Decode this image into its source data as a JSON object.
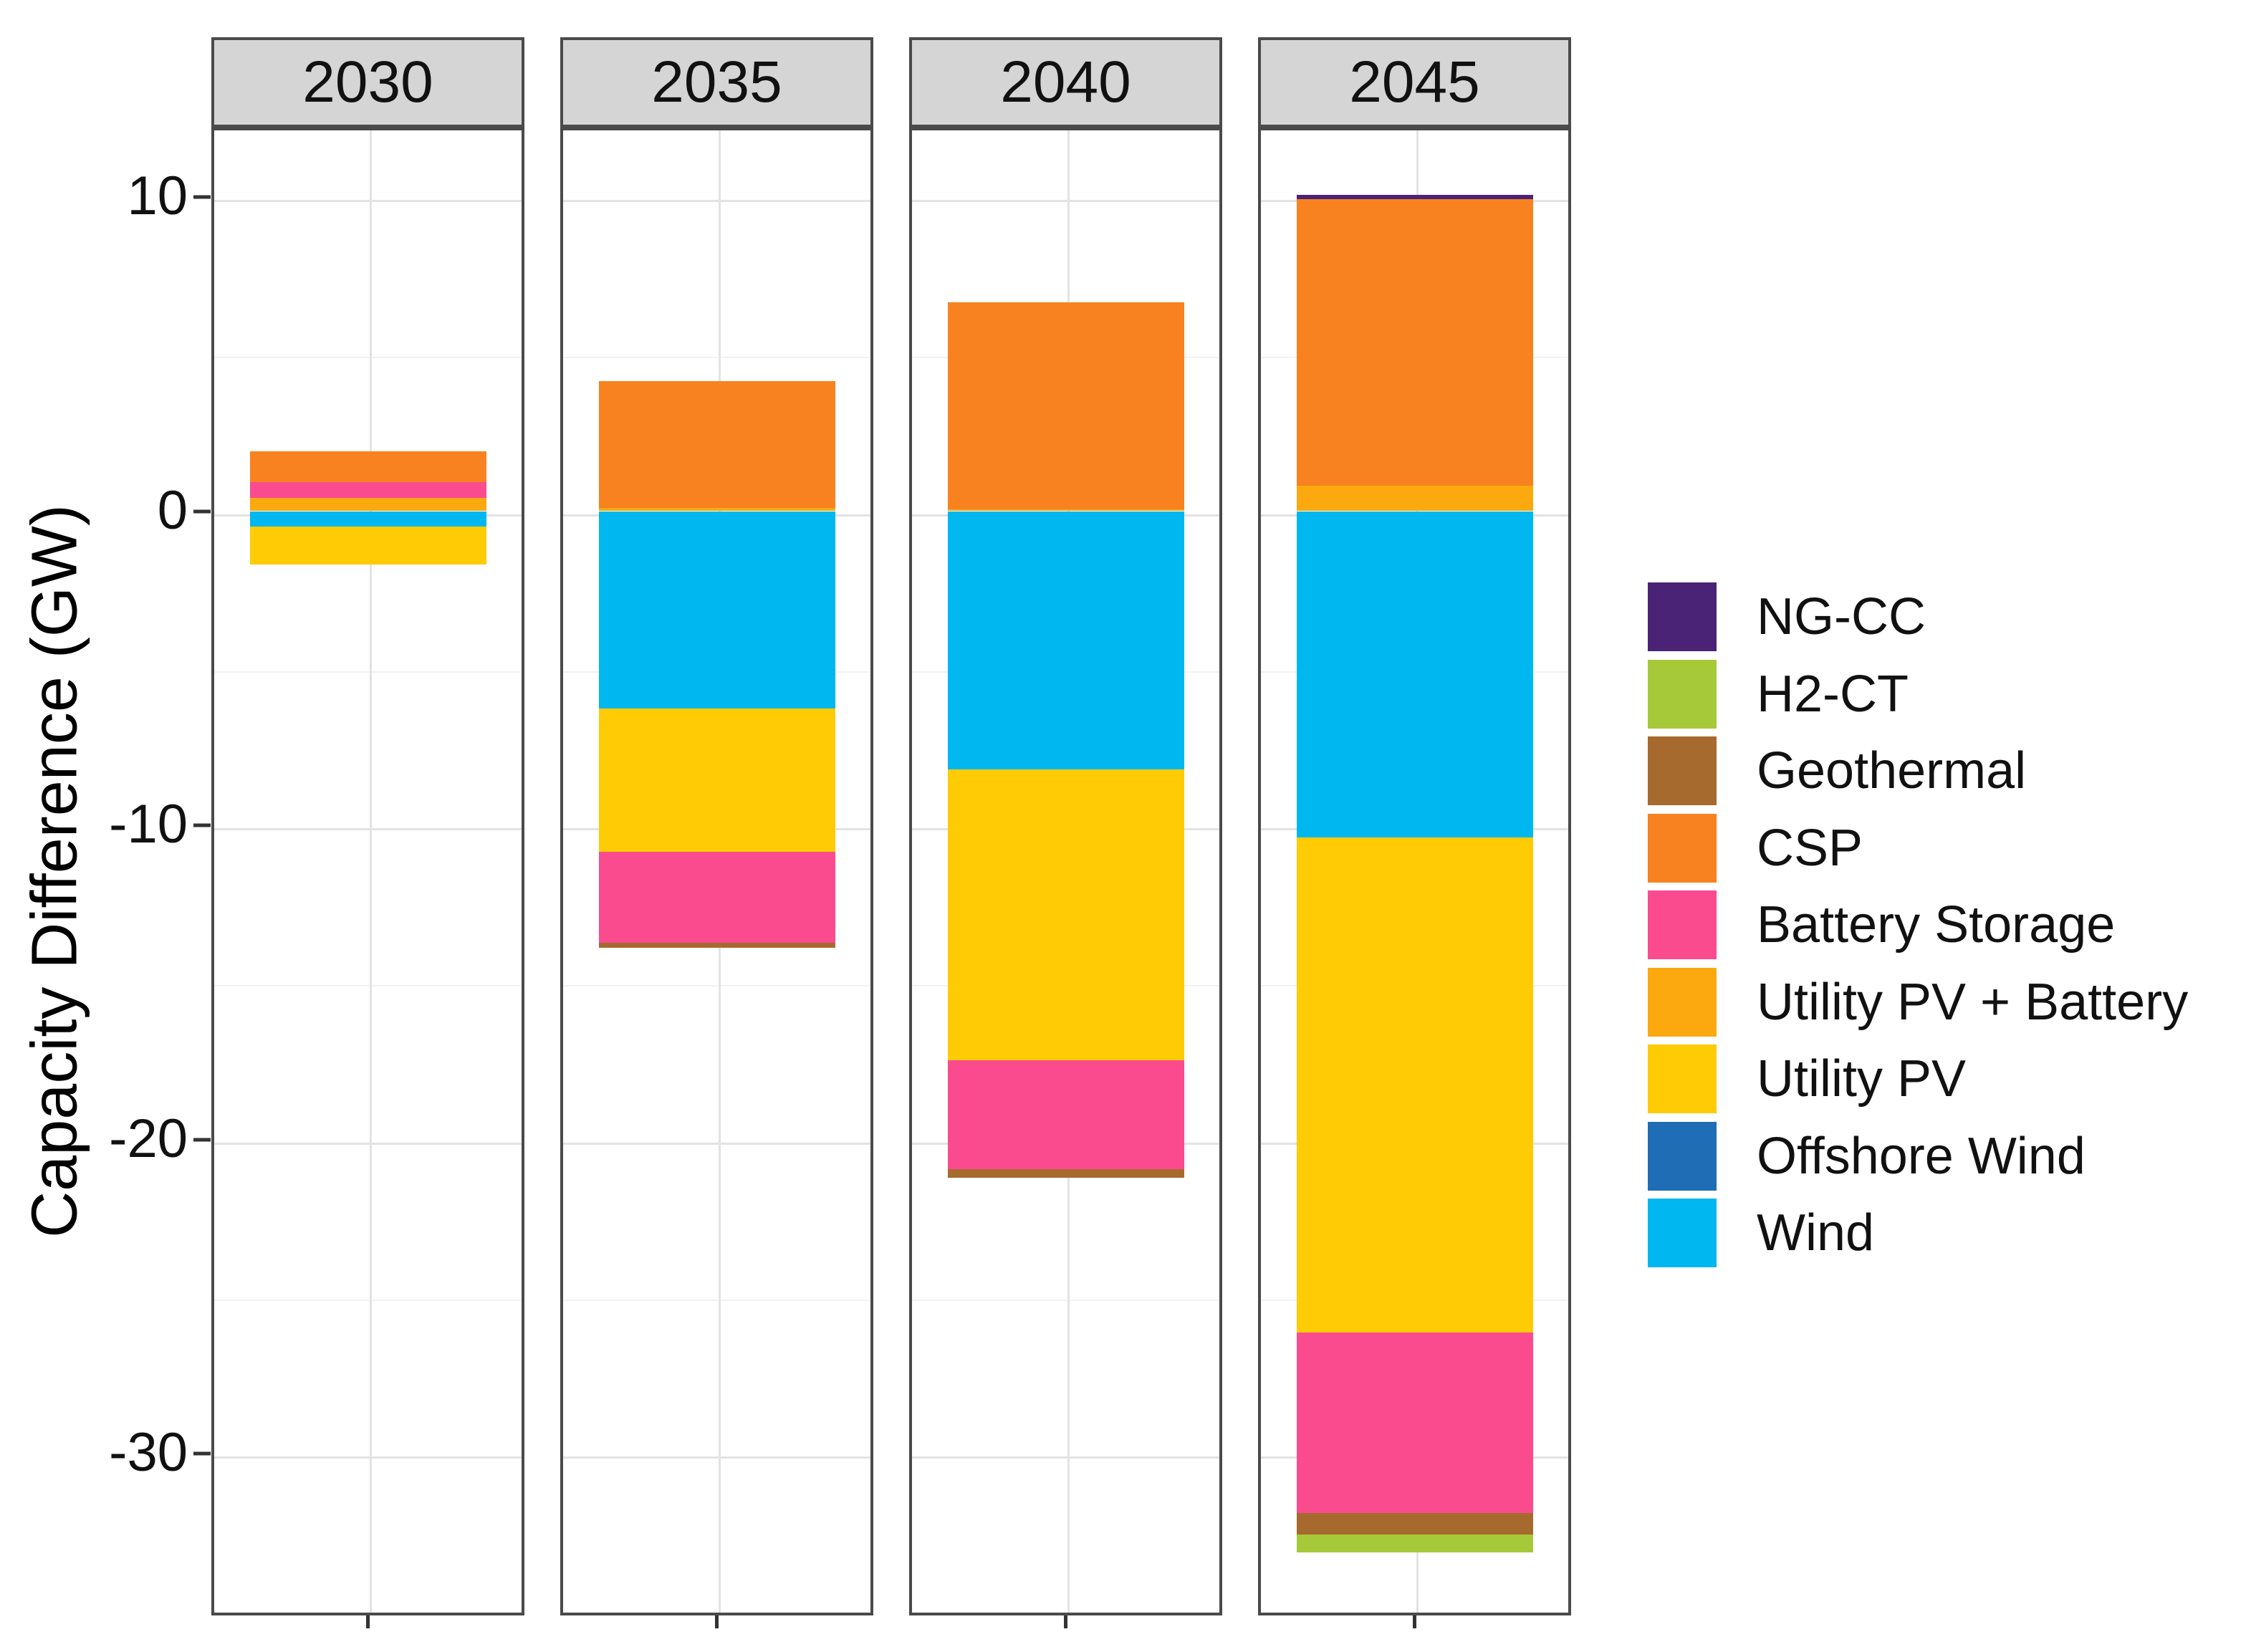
{
  "chart_data": {
    "type": "bar",
    "stacked": true,
    "orientation": "vertical",
    "title": "",
    "xlabel": "",
    "ylabel": "Capacity Difference (GW)",
    "ylim": [
      -35.1,
      12.2
    ],
    "yticks_major": [
      10,
      0,
      -10,
      -20,
      -30
    ],
    "yticks_minor": [
      5,
      -5,
      -15,
      -25
    ],
    "grid": "horizontal major+minor, one vertical center line per facet",
    "legend_position": "right",
    "facet_labels": [
      "2030",
      "2035",
      "2040",
      "2045"
    ],
    "legend_order": [
      "NG-CC",
      "H2-CT",
      "Geothermal",
      "CSP",
      "Battery Storage",
      "Utility PV + Battery",
      "Utility PV",
      "Offshore Wind",
      "Wind"
    ],
    "series_colors": {
      "NG-CC": "#4A2377",
      "H2-CT": "#A6C939",
      "Geothermal": "#A66A2E",
      "CSP": "#F8821F",
      "Battery Storage": "#FB4B8F",
      "Utility PV + Battery": "#FCA90F",
      "Utility PV": "#FFCB05",
      "Offshore Wind": "#1F6DB4",
      "Wind": "#00B7F0"
    },
    "facets": [
      {
        "label": "2030",
        "segments": [
          {
            "series": "Utility PV + Battery",
            "value": 0.43
          },
          {
            "series": "Battery Storage",
            "value": 0.5
          },
          {
            "series": "CSP",
            "value": 0.97
          },
          {
            "series": "Wind",
            "value": -0.5
          },
          {
            "series": "Utility PV",
            "value": -1.19
          }
        ]
      },
      {
        "label": "2035",
        "segments": [
          {
            "series": "Utility PV + Battery",
            "value": 0.1
          },
          {
            "series": "CSP",
            "value": 4.03
          },
          {
            "series": "Wind",
            "value": -6.28
          },
          {
            "series": "Utility PV",
            "value": -4.56
          },
          {
            "series": "Battery Storage",
            "value": -2.9
          },
          {
            "series": "Geothermal",
            "value": -0.16
          }
        ]
      },
      {
        "label": "2040",
        "segments": [
          {
            "series": "Utility PV + Battery",
            "value": 0.06
          },
          {
            "series": "CSP",
            "value": 6.58
          },
          {
            "series": "Wind",
            "value": -8.22
          },
          {
            "series": "Utility PV",
            "value": -9.25
          },
          {
            "series": "Battery Storage",
            "value": -3.47
          },
          {
            "series": "Geothermal",
            "value": -0.27
          }
        ]
      },
      {
        "label": "2045",
        "segments": [
          {
            "series": "Utility PV + Battery",
            "value": 0.82
          },
          {
            "series": "CSP",
            "value": 9.11
          },
          {
            "series": "NG-CC",
            "value": 0.14
          },
          {
            "series": "Wind",
            "value": -10.39
          },
          {
            "series": "Utility PV",
            "value": -15.75
          },
          {
            "series": "Battery Storage",
            "value": -5.75
          },
          {
            "series": "Geothermal",
            "value": -0.69
          },
          {
            "series": "H2-CT",
            "value": -0.57
          }
        ]
      }
    ]
  }
}
